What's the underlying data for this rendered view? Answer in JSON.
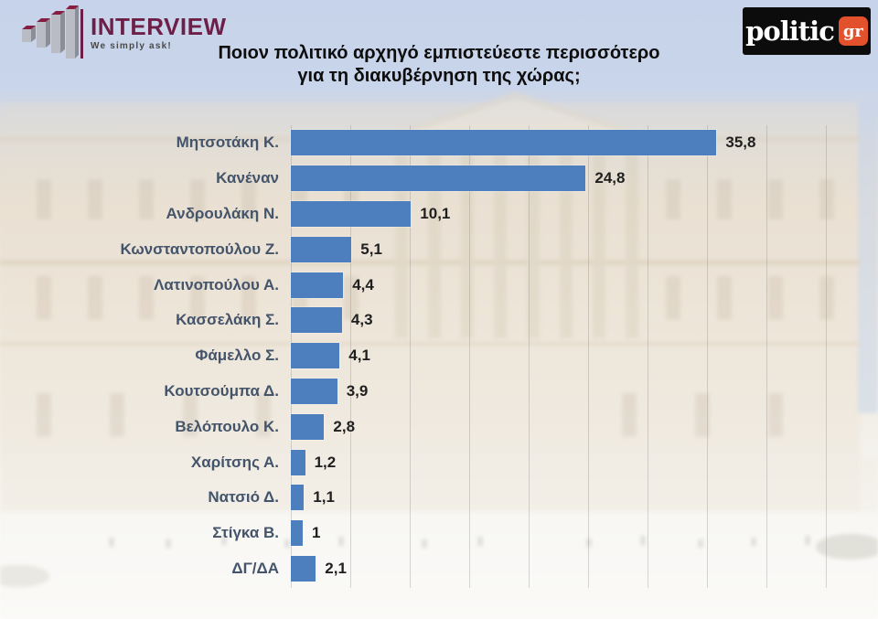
{
  "header": {
    "interview": {
      "name": "INTERVIEW",
      "tagline": "We simply ask!"
    },
    "politic": {
      "name": "politic",
      "suffix": "gr"
    }
  },
  "title": {
    "line1": "Ποιον πολιτικό αρχηγό εμπιστεύεστε περισσότερο",
    "line2": "για τη διακυβέρνηση της χώρας;"
  },
  "colors": {
    "bar": "#4d7ebd",
    "category_label": "#44546a",
    "value_label": "#1f1f1f",
    "interview_maroon": "#6d1f47",
    "politic_black": "#0c0c0c",
    "politic_orange": "#e2512b",
    "sky": "#c7d4ea",
    "gridline": "#8c8c8c"
  },
  "icons": {
    "interview_logo_bars": "rising-3d-bar-chart-icon",
    "politic_gr_badge": "gr-square-badge"
  },
  "chart_data": {
    "type": "bar",
    "orientation": "horizontal",
    "title": "Ποιον πολιτικό αρχηγό εμπιστεύεστε περισσότερο για τη διακυβέρνηση της χώρας;",
    "categories": [
      "Μητσοτάκη Κ.",
      "Κανέναν",
      "Ανδρουλάκη Ν.",
      "Κωνσταντοπούλου Ζ.",
      "Λατινοπούλου Α.",
      "Κασσελάκη Σ.",
      "Φάμελλο Σ.",
      "Κουτσούμπα Δ.",
      "Βελόπουλο Κ.",
      "Χαρίτσης Α.",
      "Νατσιό Δ.",
      "Στίγκα Β.",
      "ΔΓ/ΔΑ"
    ],
    "values": [
      35.8,
      24.8,
      10.1,
      5.1,
      4.4,
      4.3,
      4.1,
      3.9,
      2.8,
      1.2,
      1.1,
      1,
      2.1
    ],
    "value_labels": [
      "35,8",
      "24,8",
      "10,1",
      "5,1",
      "4,4",
      "4,3",
      "4,1",
      "3,9",
      "2,8",
      "1,2",
      "1,1",
      "1",
      "2,1"
    ],
    "xlabel": "",
    "ylabel": "",
    "xlim": [
      0,
      45
    ],
    "gridline_interval": 5,
    "grid": true,
    "legend": false,
    "data_labels": true
  }
}
